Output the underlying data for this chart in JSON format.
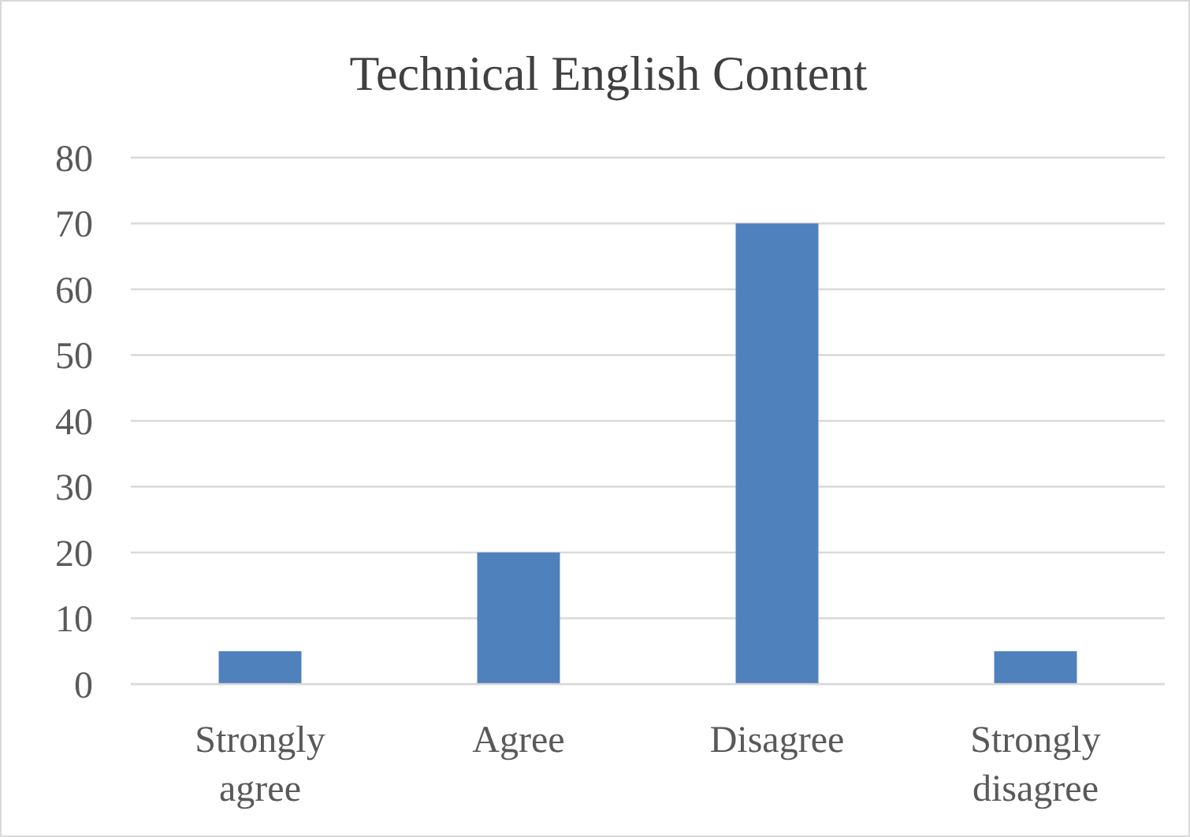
{
  "chart_data": {
    "type": "bar",
    "title": "Technical English Content",
    "categories": [
      "Strongly agree",
      "Agree",
      "Disagree",
      "Strongly disagree"
    ],
    "values": [
      5,
      20,
      70,
      5
    ],
    "color": "#4f81bd",
    "ylim": [
      0,
      80
    ],
    "yticks": [
      0,
      10,
      20,
      30,
      40,
      50,
      60,
      70,
      80
    ],
    "grid": "y"
  }
}
